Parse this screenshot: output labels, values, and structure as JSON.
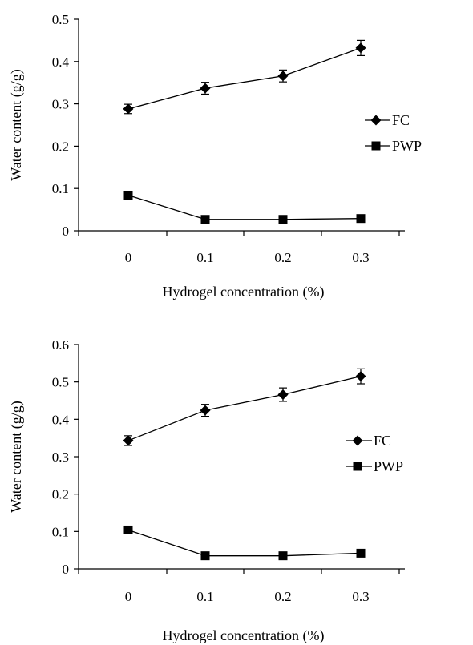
{
  "chart_data": [
    {
      "type": "line",
      "categories": [
        "0",
        "0.1",
        "0.2",
        "0.3"
      ],
      "xlabel": "Hydrogel concentration (%)",
      "ylabel": "Water content (g/g)",
      "ylim": [
        0,
        0.5
      ],
      "yticks": [
        "0",
        "0.1",
        "0.2",
        "0.3",
        "0.4",
        "0.5"
      ],
      "grid": false,
      "legend_position": "right",
      "series": [
        {
          "name": "FC",
          "marker": "diamond",
          "values": [
            0.288,
            0.337,
            0.366,
            0.432
          ],
          "errors": [
            0.011,
            0.014,
            0.014,
            0.018
          ]
        },
        {
          "name": "PWP",
          "marker": "square",
          "values": [
            0.084,
            0.027,
            0.027,
            0.029
          ],
          "errors": [
            0,
            0,
            0,
            0
          ]
        }
      ]
    },
    {
      "type": "line",
      "categories": [
        "0",
        "0.1",
        "0.2",
        "0.3"
      ],
      "xlabel": "Hydrogel concentration (%)",
      "ylabel": "Water content (g/g)",
      "ylim": [
        0,
        0.6
      ],
      "yticks": [
        "0",
        "0.1",
        "0.2",
        "0.3",
        "0.4",
        "0.5",
        "0.6"
      ],
      "grid": false,
      "legend_position": "right",
      "series": [
        {
          "name": "FC",
          "marker": "diamond",
          "values": [
            0.343,
            0.424,
            0.466,
            0.515
          ],
          "errors": [
            0.013,
            0.016,
            0.018,
            0.02
          ]
        },
        {
          "name": "PWP",
          "marker": "square",
          "values": [
            0.104,
            0.035,
            0.035,
            0.042
          ],
          "errors": [
            0,
            0,
            0,
            0
          ]
        }
      ]
    }
  ]
}
